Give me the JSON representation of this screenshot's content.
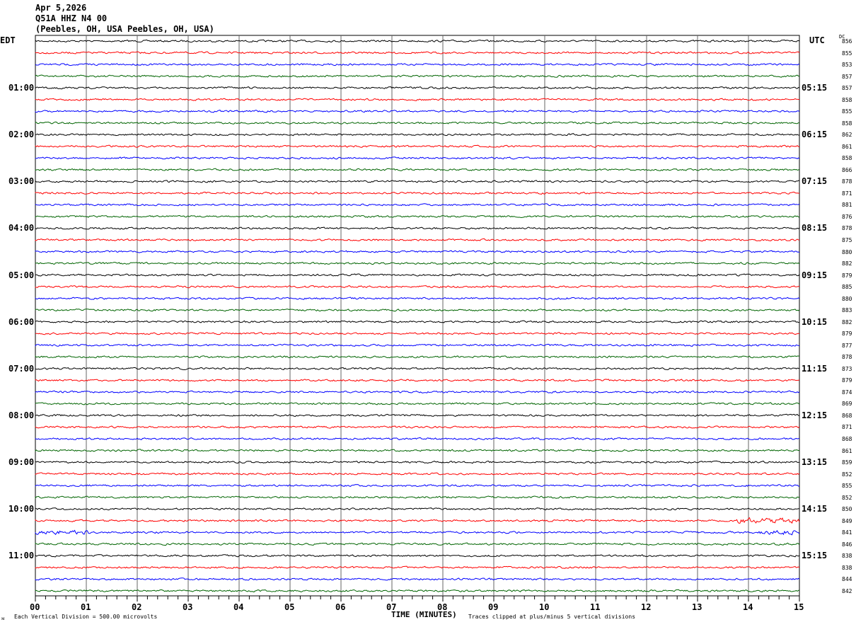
{
  "header": {
    "date": "Apr 5,2026",
    "station": "Q51A HHZ N4 00",
    "location": "(Peebles, OH, USA Peebles, OH, USA)"
  },
  "chart_data": {
    "type": "line",
    "title": "Apr 5,2026 Q51A HHZ N4 00",
    "xlabel": "TIME (MINUTES)",
    "x_ticks": [
      "00",
      "01",
      "02",
      "03",
      "04",
      "05",
      "06",
      "07",
      "08",
      "09",
      "10",
      "11",
      "12",
      "13",
      "14",
      "15"
    ],
    "xlim": [
      0,
      15
    ],
    "left_axis_title": "EDT",
    "right_axis_title": "UTC",
    "dc_title": "DC",
    "left_labels": [
      "01:00",
      "02:00",
      "03:00",
      "04:00",
      "05:00",
      "06:00",
      "07:00",
      "08:00",
      "09:00",
      "10:00",
      "11:00"
    ],
    "right_labels": [
      "05:15",
      "06:15",
      "07:15",
      "08:15",
      "09:15",
      "10:15",
      "11:15",
      "12:15",
      "13:15",
      "14:15",
      "15:15"
    ],
    "trace_colors": [
      "#000000",
      "#ff0000",
      "#0000ff",
      "#006400"
    ],
    "trace_count": 48,
    "dc_values": [
      856,
      855,
      853,
      857,
      857,
      858,
      855,
      858,
      862,
      861,
      858,
      866,
      878,
      871,
      881,
      876,
      878,
      875,
      880,
      882,
      879,
      885,
      880,
      883,
      882,
      879,
      877,
      878,
      873,
      879,
      874,
      869,
      868,
      871,
      868,
      861,
      859,
      852,
      855,
      852,
      850,
      849,
      841,
      846,
      838,
      838,
      844,
      842
    ],
    "grid": true
  },
  "footer": {
    "scale": "Each Vertical Division =  500.00 microvolts",
    "clip": "Traces clipped at plus/minus 5 vertical divisions",
    "mark": "ᴍ"
  }
}
